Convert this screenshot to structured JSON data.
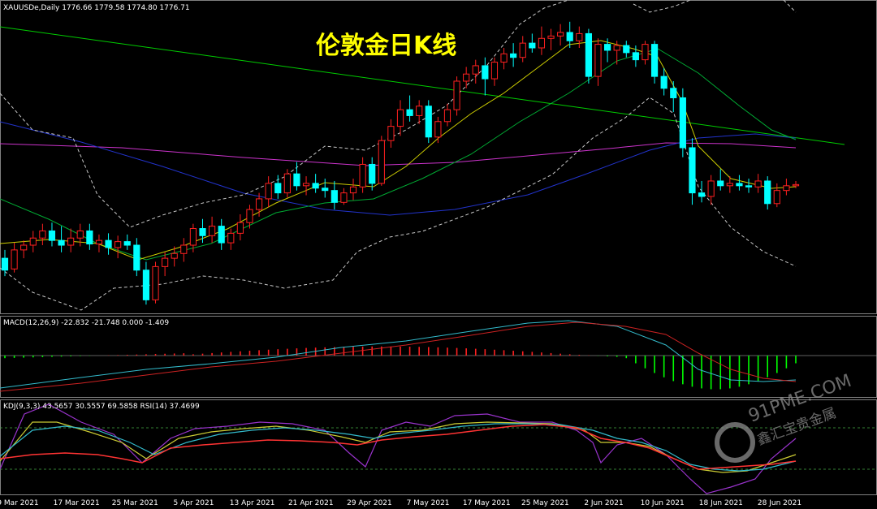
{
  "header": {
    "symbol_info": "XAUUSDe,Daily",
    "ohlc_text": "1776.66 1779.58 1774.80 1776.71"
  },
  "overlay_title": "伦敦金日K线",
  "macd_label": "MACD(12,26,9) -22.832 -21.748 0.000 -1.409",
  "kdj_label": "KDJ(9,3,3) 43.5657 30.5557 69.5858",
  "rsi_label": "RSI(14) 37.4699",
  "watermark": {
    "brand": "91PME.COM",
    "sub": "鑫汇宝贵金属"
  },
  "date_axis": [
    "9 Mar 2021",
    "17 Mar 2021",
    "25 Mar 2021",
    "5 Apr 2021",
    "13 Apr 2021",
    "21 Apr 2021",
    "29 Apr 2021",
    "7 May 2021",
    "17 May 2021",
    "25 May 2021",
    "2 Jun 2021",
    "10 Jun 2021",
    "18 Jun 2021",
    "28 Jun 2021"
  ],
  "colors": {
    "bull": "#ff2020",
    "bear": "#00ffff",
    "ma_green": "#00cc33",
    "ma_blue": "#2233cc",
    "ma_magenta": "#cc33cc",
    "ma_yellow": "#cccc00",
    "band": "#c8c8c8",
    "trendline": "#00cc00",
    "hist_pos": "#ff2020",
    "hist_neg": "#00ff00",
    "signal": "#ff3333",
    "macd_line": "#33bbcc"
  },
  "chart_data": {
    "type": "candlestick",
    "price_scale_unit": "USD/oz",
    "ylim": [
      1670,
      1920
    ],
    "candles": [
      {
        "o": 1715,
        "h": 1722,
        "l": 1700,
        "c": 1705
      },
      {
        "o": 1706,
        "h": 1728,
        "l": 1703,
        "c": 1722
      },
      {
        "o": 1722,
        "h": 1730,
        "l": 1715,
        "c": 1726
      },
      {
        "o": 1726,
        "h": 1738,
        "l": 1720,
        "c": 1732
      },
      {
        "o": 1732,
        "h": 1744,
        "l": 1726,
        "c": 1738
      },
      {
        "o": 1738,
        "h": 1745,
        "l": 1725,
        "c": 1730
      },
      {
        "o": 1730,
        "h": 1742,
        "l": 1720,
        "c": 1726
      },
      {
        "o": 1726,
        "h": 1740,
        "l": 1720,
        "c": 1732
      },
      {
        "o": 1732,
        "h": 1744,
        "l": 1725,
        "c": 1738
      },
      {
        "o": 1738,
        "h": 1744,
        "l": 1722,
        "c": 1727
      },
      {
        "o": 1727,
        "h": 1735,
        "l": 1720,
        "c": 1730
      },
      {
        "o": 1730,
        "h": 1736,
        "l": 1718,
        "c": 1724
      },
      {
        "o": 1724,
        "h": 1734,
        "l": 1715,
        "c": 1729
      },
      {
        "o": 1729,
        "h": 1735,
        "l": 1722,
        "c": 1726
      },
      {
        "o": 1726,
        "h": 1732,
        "l": 1700,
        "c": 1705
      },
      {
        "o": 1705,
        "h": 1712,
        "l": 1676,
        "c": 1680
      },
      {
        "o": 1680,
        "h": 1712,
        "l": 1677,
        "c": 1708
      },
      {
        "o": 1708,
        "h": 1720,
        "l": 1700,
        "c": 1715
      },
      {
        "o": 1715,
        "h": 1725,
        "l": 1708,
        "c": 1719
      },
      {
        "o": 1719,
        "h": 1732,
        "l": 1712,
        "c": 1726
      },
      {
        "o": 1726,
        "h": 1744,
        "l": 1720,
        "c": 1740
      },
      {
        "o": 1740,
        "h": 1748,
        "l": 1728,
        "c": 1734
      },
      {
        "o": 1734,
        "h": 1750,
        "l": 1728,
        "c": 1742
      },
      {
        "o": 1742,
        "h": 1748,
        "l": 1722,
        "c": 1728
      },
      {
        "o": 1728,
        "h": 1740,
        "l": 1722,
        "c": 1736
      },
      {
        "o": 1736,
        "h": 1752,
        "l": 1730,
        "c": 1745
      },
      {
        "o": 1745,
        "h": 1760,
        "l": 1740,
        "c": 1756
      },
      {
        "o": 1756,
        "h": 1770,
        "l": 1750,
        "c": 1765
      },
      {
        "o": 1765,
        "h": 1784,
        "l": 1758,
        "c": 1778
      },
      {
        "o": 1778,
        "h": 1785,
        "l": 1765,
        "c": 1770
      },
      {
        "o": 1770,
        "h": 1790,
        "l": 1766,
        "c": 1786
      },
      {
        "o": 1786,
        "h": 1796,
        "l": 1772,
        "c": 1776
      },
      {
        "o": 1776,
        "h": 1784,
        "l": 1768,
        "c": 1778
      },
      {
        "o": 1778,
        "h": 1786,
        "l": 1770,
        "c": 1774
      },
      {
        "o": 1774,
        "h": 1782,
        "l": 1766,
        "c": 1772
      },
      {
        "o": 1772,
        "h": 1780,
        "l": 1756,
        "c": 1762
      },
      {
        "o": 1762,
        "h": 1774,
        "l": 1760,
        "c": 1770
      },
      {
        "o": 1770,
        "h": 1782,
        "l": 1764,
        "c": 1775
      },
      {
        "o": 1775,
        "h": 1800,
        "l": 1770,
        "c": 1794
      },
      {
        "o": 1794,
        "h": 1800,
        "l": 1772,
        "c": 1778
      },
      {
        "o": 1778,
        "h": 1818,
        "l": 1776,
        "c": 1814
      },
      {
        "o": 1814,
        "h": 1832,
        "l": 1808,
        "c": 1826
      },
      {
        "o": 1826,
        "h": 1848,
        "l": 1818,
        "c": 1840
      },
      {
        "o": 1840,
        "h": 1852,
        "l": 1830,
        "c": 1835
      },
      {
        "o": 1835,
        "h": 1848,
        "l": 1828,
        "c": 1843
      },
      {
        "o": 1843,
        "h": 1848,
        "l": 1812,
        "c": 1817
      },
      {
        "o": 1817,
        "h": 1834,
        "l": 1812,
        "c": 1830
      },
      {
        "o": 1830,
        "h": 1845,
        "l": 1826,
        "c": 1840
      },
      {
        "o": 1840,
        "h": 1868,
        "l": 1835,
        "c": 1864
      },
      {
        "o": 1864,
        "h": 1876,
        "l": 1858,
        "c": 1870
      },
      {
        "o": 1870,
        "h": 1882,
        "l": 1862,
        "c": 1877
      },
      {
        "o": 1877,
        "h": 1884,
        "l": 1852,
        "c": 1866
      },
      {
        "o": 1866,
        "h": 1884,
        "l": 1860,
        "c": 1880
      },
      {
        "o": 1880,
        "h": 1892,
        "l": 1874,
        "c": 1887
      },
      {
        "o": 1887,
        "h": 1896,
        "l": 1876,
        "c": 1884
      },
      {
        "o": 1884,
        "h": 1902,
        "l": 1880,
        "c": 1896
      },
      {
        "o": 1896,
        "h": 1904,
        "l": 1888,
        "c": 1892
      },
      {
        "o": 1892,
        "h": 1910,
        "l": 1886,
        "c": 1900
      },
      {
        "o": 1900,
        "h": 1908,
        "l": 1890,
        "c": 1902
      },
      {
        "o": 1902,
        "h": 1912,
        "l": 1894,
        "c": 1905
      },
      {
        "o": 1905,
        "h": 1914,
        "l": 1892,
        "c": 1898
      },
      {
        "o": 1898,
        "h": 1910,
        "l": 1892,
        "c": 1904
      },
      {
        "o": 1904,
        "h": 1908,
        "l": 1862,
        "c": 1868
      },
      {
        "o": 1868,
        "h": 1900,
        "l": 1860,
        "c": 1895
      },
      {
        "o": 1895,
        "h": 1900,
        "l": 1880,
        "c": 1890
      },
      {
        "o": 1890,
        "h": 1898,
        "l": 1878,
        "c": 1894
      },
      {
        "o": 1894,
        "h": 1898,
        "l": 1884,
        "c": 1888
      },
      {
        "o": 1888,
        "h": 1894,
        "l": 1876,
        "c": 1882
      },
      {
        "o": 1882,
        "h": 1898,
        "l": 1878,
        "c": 1895
      },
      {
        "o": 1895,
        "h": 1898,
        "l": 1862,
        "c": 1868
      },
      {
        "o": 1868,
        "h": 1875,
        "l": 1852,
        "c": 1858
      },
      {
        "o": 1858,
        "h": 1864,
        "l": 1838,
        "c": 1850
      },
      {
        "o": 1850,
        "h": 1858,
        "l": 1800,
        "c": 1808
      },
      {
        "o": 1808,
        "h": 1816,
        "l": 1760,
        "c": 1770
      },
      {
        "o": 1770,
        "h": 1780,
        "l": 1762,
        "c": 1767
      },
      {
        "o": 1767,
        "h": 1785,
        "l": 1760,
        "c": 1780
      },
      {
        "o": 1780,
        "h": 1790,
        "l": 1772,
        "c": 1776
      },
      {
        "o": 1776,
        "h": 1784,
        "l": 1770,
        "c": 1778
      },
      {
        "o": 1778,
        "h": 1785,
        "l": 1772,
        "c": 1776
      },
      {
        "o": 1776,
        "h": 1782,
        "l": 1770,
        "c": 1775
      },
      {
        "o": 1775,
        "h": 1786,
        "l": 1770,
        "c": 1780
      },
      {
        "o": 1780,
        "h": 1784,
        "l": 1756,
        "c": 1761
      },
      {
        "o": 1761,
        "h": 1778,
        "l": 1758,
        "c": 1772
      },
      {
        "o": 1772,
        "h": 1782,
        "l": 1768,
        "c": 1776
      },
      {
        "o": 1776,
        "h": 1780,
        "l": 1774,
        "c": 1777
      }
    ]
  }
}
